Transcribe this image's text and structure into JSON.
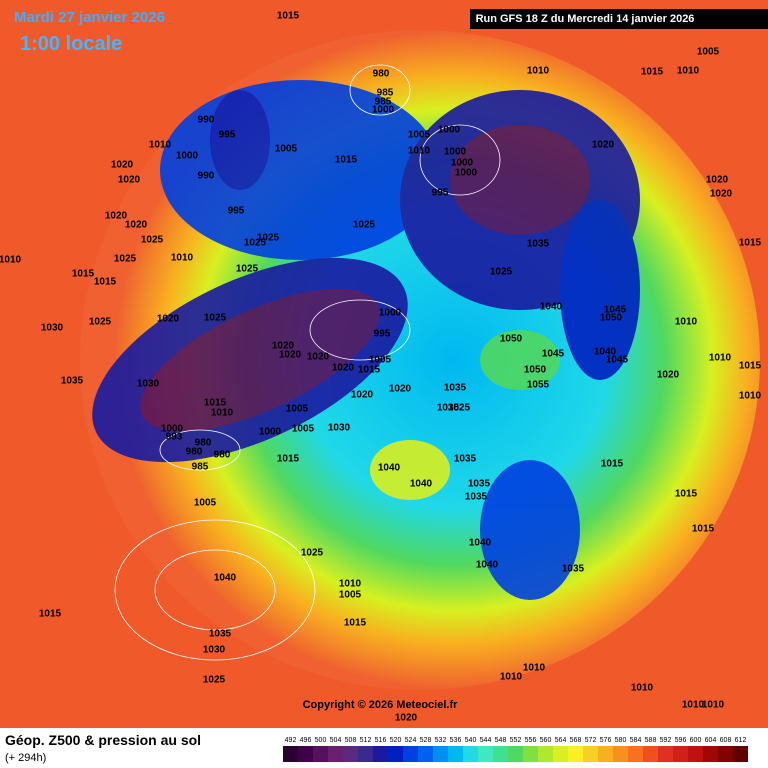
{
  "header": {
    "date": "Mardi 27 janvier 2026",
    "time": "1:00 locale",
    "run": "Run GFS 18 Z du Mercredi 14 janvier 2026"
  },
  "footer": {
    "field": "Géop. Z500 & pression au sol",
    "lead": "(+ 294h)",
    "copyright": "Copyright © 2026 Meteociel.fr"
  },
  "color_scale": {
    "labels": [
      492,
      496,
      500,
      504,
      508,
      512,
      516,
      520,
      524,
      528,
      532,
      536,
      540,
      544,
      548,
      552,
      556,
      560,
      564,
      568,
      572,
      576,
      580,
      584,
      588,
      592,
      596,
      600,
      604,
      608,
      612
    ],
    "colors": [
      "#2a0030",
      "#40004a",
      "#55105e",
      "#6a2070",
      "#5a2a80",
      "#3a2a90",
      "#1a1aa0",
      "#0020c0",
      "#0040e0",
      "#0060f0",
      "#0090f0",
      "#00b8f0",
      "#20d8e8",
      "#40e8c0",
      "#40e090",
      "#50d860",
      "#80e040",
      "#b0e830",
      "#d8f020",
      "#f8f020",
      "#f8d020",
      "#f8b020",
      "#f89020",
      "#f87020",
      "#f05020",
      "#e03020",
      "#d02018",
      "#c01010",
      "#a00808",
      "#800000",
      "#600000"
    ]
  },
  "isobar_labels": [
    1015,
    980,
    985,
    985,
    1000,
    1010,
    1015,
    1010,
    1005,
    990,
    995,
    1010,
    1000,
    1005,
    1005,
    1000,
    1010,
    1000,
    1000,
    1000,
    1015,
    1020,
    1020,
    1020,
    990,
    995,
    995,
    1020,
    1020,
    1025,
    1035,
    1025,
    1025,
    1025,
    1010,
    1025,
    1010,
    1025,
    1025,
    1015,
    1015,
    1020,
    1020,
    1015,
    1000,
    1040,
    1045,
    1050,
    1010,
    995,
    1020,
    1025,
    1025,
    1030,
    1050,
    1020,
    1020,
    1020,
    1045,
    1040,
    1045,
    1010,
    1015,
    1005,
    1020,
    1015,
    1050,
    1020,
    1035,
    1030,
    1020,
    1035,
    1055,
    1020,
    1015,
    1010,
    1005,
    1035,
    1025,
    1010,
    1030,
    1000,
    1005,
    1000,
    993,
    980,
    980,
    980,
    985,
    1015,
    1035,
    1040,
    1015,
    1040,
    1035,
    1035,
    1005,
    1015,
    1015,
    1040,
    1025,
    1040,
    1035,
    1040,
    1010,
    1005,
    1015,
    1015,
    1035,
    1030,
    1010,
    1010,
    1010,
    1025,
    1010,
    1010,
    1020
  ]
}
